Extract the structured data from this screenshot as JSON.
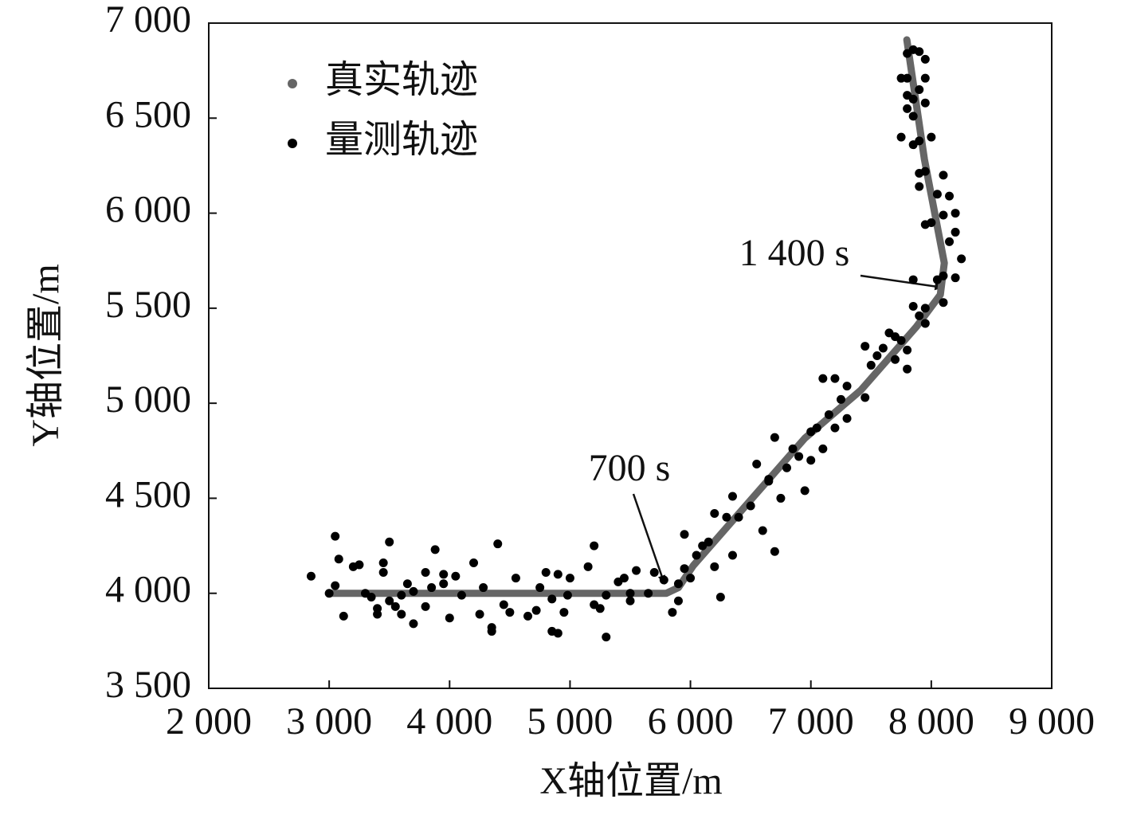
{
  "chart_data": {
    "type": "scatter",
    "x_label": "X轴位置/m",
    "y_label": "Y轴位置/m",
    "xlim": [
      2000,
      9000
    ],
    "ylim": [
      3500,
      7000
    ],
    "xticks": [
      {
        "value": 2000,
        "label": "2 000"
      },
      {
        "value": 3000,
        "label": "3 000"
      },
      {
        "value": 4000,
        "label": "4 000"
      },
      {
        "value": 5000,
        "label": "5 000"
      },
      {
        "value": 6000,
        "label": "6 000"
      },
      {
        "value": 7000,
        "label": "7 000"
      },
      {
        "value": 8000,
        "label": "8 000"
      },
      {
        "value": 9000,
        "label": "9 000"
      }
    ],
    "yticks": [
      {
        "value": 3500,
        "label": "3 500"
      },
      {
        "value": 4000,
        "label": "4 000"
      },
      {
        "value": 4500,
        "label": "4 500"
      },
      {
        "value": 5000,
        "label": "5 000"
      },
      {
        "value": 5500,
        "label": "5 500"
      },
      {
        "value": 6000,
        "label": "6 000"
      },
      {
        "value": 6500,
        "label": "6 500"
      },
      {
        "value": 7000,
        "label": "7 000"
      }
    ],
    "legend": "upper left",
    "annotations": [
      "700 s",
      "1 400 s"
    ],
    "series": [
      {
        "name": "真实轨迹",
        "color": "#666666",
        "mode": "line",
        "x": [
          3000,
          5800,
          5900,
          6024,
          6487,
          6950,
          7414,
          7877,
          8075,
          8108,
          7943,
          7797
        ],
        "values": [
          4000,
          4000,
          4030,
          4146,
          4481,
          4816,
          5068,
          5403,
          5571,
          5738,
          6283,
          6912
        ]
      },
      {
        "name": "量测轨迹",
        "color": "#000000",
        "mode": "markers",
        "x": [
          2850,
          3050,
          3000,
          3080,
          3050,
          3120,
          3200,
          3250,
          3300,
          3350,
          3400,
          3400,
          3450,
          3450,
          3500,
          3500,
          3550,
          3600,
          3600,
          3650,
          3700,
          3700,
          3800,
          3800,
          3850,
          3880,
          3950,
          3950,
          4000,
          4050,
          4100,
          4200,
          4250,
          4280,
          4350,
          4350,
          4400,
          4450,
          4500,
          4550,
          4650,
          4720,
          4750,
          4800,
          4850,
          4850,
          4900,
          4900,
          4950,
          4980,
          5000,
          5150,
          5200,
          5200,
          5250,
          5300,
          5300,
          5400,
          5450,
          5500,
          5500,
          5550,
          5650,
          5700,
          5780,
          5850,
          5900,
          5900,
          5950,
          5950,
          6000,
          6050,
          6100,
          6150,
          6200,
          6200,
          6250,
          6300,
          6350,
          6350,
          6400,
          6500,
          6550,
          6600,
          6650,
          6650,
          6700,
          6700,
          6750,
          6800,
          6850,
          6900,
          6950,
          7000,
          7000,
          7050,
          7100,
          7100,
          7150,
          7200,
          7200,
          7250,
          7300,
          7300,
          7450,
          7450,
          7500,
          7550,
          7600,
          7650,
          7700,
          7700,
          7750,
          7800,
          7800,
          7850,
          7900,
          7950,
          7950,
          8100,
          8050,
          8100,
          7850,
          8200,
          8250,
          8200,
          8150,
          8200,
          8100,
          8150,
          8100,
          8050,
          8000,
          7950,
          7900,
          7900,
          7950,
          8000,
          7900,
          7850,
          7750,
          7800,
          7800,
          7850,
          7850,
          7900,
          7950,
          7950,
          7950,
          7800,
          7750,
          7800,
          7850,
          7900
        ],
        "values": [
          4090,
          4300,
          4000,
          4180,
          4040,
          3880,
          4140,
          4150,
          4000,
          3980,
          3920,
          3890,
          4160,
          4110,
          4270,
          3960,
          3930,
          3990,
          3890,
          4050,
          3840,
          4010,
          4110,
          3930,
          4030,
          4230,
          4100,
          4050,
          3870,
          4090,
          3990,
          4160,
          3890,
          4030,
          3820,
          3800,
          4260,
          3940,
          3900,
          4080,
          3880,
          3910,
          4030,
          4110,
          3800,
          3970,
          3790,
          4100,
          3900,
          3990,
          4080,
          4140,
          4250,
          3940,
          3920,
          3770,
          3990,
          4060,
          4080,
          4000,
          3960,
          4120,
          4000,
          4110,
          4070,
          3900,
          4050,
          3960,
          4310,
          4130,
          4080,
          4200,
          4250,
          4270,
          4140,
          4420,
          3980,
          4400,
          4200,
          4510,
          4400,
          4460,
          4680,
          4330,
          4590,
          4600,
          4820,
          4220,
          4500,
          4660,
          4760,
          4720,
          4540,
          4850,
          4700,
          4870,
          5130,
          4760,
          4940,
          5130,
          4870,
          5020,
          4920,
          5090,
          5030,
          5300,
          5200,
          5250,
          5290,
          5370,
          5230,
          5350,
          5330,
          5180,
          5280,
          5510,
          5460,
          5420,
          5500,
          5530,
          5650,
          5670,
          5650,
          5660,
          5760,
          5900,
          5850,
          6000,
          5990,
          6090,
          6200,
          6100,
          5950,
          5940,
          6140,
          6210,
          6220,
          6400,
          6380,
          6360,
          6400,
          6550,
          6620,
          6510,
          6600,
          6650,
          6580,
          6710,
          6810,
          6710,
          6710,
          6840,
          6860,
          6850
        ]
      }
    ]
  }
}
